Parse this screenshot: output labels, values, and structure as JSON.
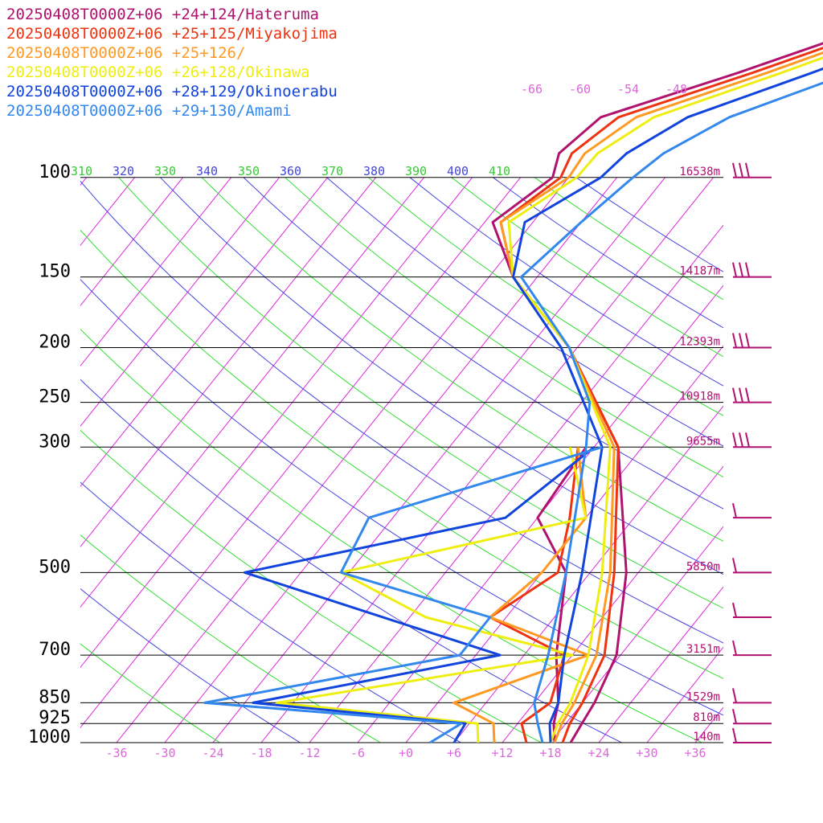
{
  "chart_data": {
    "type": "line",
    "title": "",
    "xlabel": "",
    "ylabel": "",
    "x_ticks": [
      "-36",
      "-30",
      "-24",
      "-18",
      "-12",
      "-6",
      "+0",
      "+6",
      "+12",
      "+18",
      "+24",
      "+30",
      "+36"
    ],
    "x_tick_values": [
      -36,
      -30,
      -24,
      -18,
      -12,
      -6,
      0,
      6,
      12,
      18,
      24,
      30,
      36
    ],
    "pressure_levels": [
      "100",
      "150",
      "200",
      "250",
      "300",
      "500",
      "700",
      "850",
      "925",
      "1000"
    ],
    "pressure_values": [
      100,
      150,
      200,
      250,
      300,
      500,
      700,
      850,
      925,
      1000
    ],
    "height_labels": [
      {
        "p": 100,
        "text": "16538m"
      },
      {
        "p": 150,
        "text": "14187m"
      },
      {
        "p": 200,
        "text": "12393m"
      },
      {
        "p": 250,
        "text": "10918m"
      },
      {
        "p": 300,
        "text": "9655m"
      },
      {
        "p": 500,
        "text": "5850m"
      },
      {
        "p": 700,
        "text": "3151m"
      },
      {
        "p": 850,
        "text": "1529m"
      },
      {
        "p": 925,
        "text": "810m"
      },
      {
        "p": 1000,
        "text": "140m"
      }
    ],
    "theta_labels": [
      "310",
      "320",
      "330",
      "340",
      "350",
      "360",
      "370",
      "380",
      "390",
      "400",
      "410"
    ],
    "mixing_ratio_labels": [
      "-66",
      "-60",
      "-54",
      "-48"
    ],
    "colors": {
      "isobar": "#000000",
      "isotherm": "#dd22dd",
      "dry_adiabat": "#4444dd",
      "moist_adiabat": "#33dd33",
      "theta_green": "#33cc33",
      "theta_blue": "#4444dd",
      "axis_label": "#dd66dd",
      "height_label": "#b01070",
      "barb": "#b01070"
    },
    "series": [
      {
        "name": "20250408T0000Z+06 +24+124/Hateruma",
        "color": "#b0126e",
        "temp": [
          [
            1000,
            20.5
          ],
          [
            925,
            20.0
          ],
          [
            850,
            19.5
          ],
          [
            700,
            17.5
          ],
          [
            500,
            10.5
          ],
          [
            300,
            -3
          ],
          [
            200,
            -19
          ],
          [
            150,
            -33
          ],
          [
            120,
            -41
          ],
          [
            100,
            -38
          ]
        ],
        "dew": [
          [
            1000,
            18.5
          ],
          [
            925,
            16.5
          ],
          [
            850,
            15
          ],
          [
            700,
            10
          ],
          [
            500,
            3
          ],
          [
            400,
            -6
          ],
          [
            300,
            -7
          ]
        ]
      },
      {
        "name": "20250408T0000Z+06 +25+125/Miyakojima",
        "color": "#ee3311",
        "temp": [
          [
            1000,
            19.5
          ],
          [
            925,
            18.5
          ],
          [
            850,
            18
          ],
          [
            700,
            16
          ],
          [
            500,
            9
          ],
          [
            300,
            -3
          ],
          [
            200,
            -19
          ],
          [
            150,
            -33
          ],
          [
            120,
            -40
          ],
          [
            100,
            -37
          ]
        ],
        "dew": [
          [
            1000,
            15
          ],
          [
            925,
            12.5
          ],
          [
            850,
            14
          ],
          [
            700,
            11
          ],
          [
            600,
            -2
          ],
          [
            500,
            2
          ],
          [
            400,
            -2
          ],
          [
            300,
            -8
          ]
        ]
      },
      {
        "name": "20250408T0000Z+06 +25+126/",
        "color": "#ff9922",
        "temp": [
          [
            1000,
            18.5
          ],
          [
            925,
            17.5
          ],
          [
            850,
            17
          ],
          [
            700,
            15
          ],
          [
            500,
            8.5
          ],
          [
            300,
            -3.5
          ],
          [
            200,
            -19
          ],
          [
            150,
            -33
          ],
          [
            120,
            -40
          ],
          [
            100,
            -36
          ]
        ],
        "dew": [
          [
            1000,
            11
          ],
          [
            925,
            9
          ],
          [
            850,
            2
          ],
          [
            700,
            14
          ],
          [
            600,
            -2
          ],
          [
            500,
            0
          ],
          [
            400,
            0
          ],
          [
            300,
            -8
          ]
        ]
      },
      {
        "name": "20250408T0000Z+06 +26+128/Okinawa",
        "color": "#eeee11",
        "temp": [
          [
            1000,
            18
          ],
          [
            925,
            17
          ],
          [
            850,
            16.5
          ],
          [
            700,
            14
          ],
          [
            500,
            7.5
          ],
          [
            300,
            -4
          ],
          [
            200,
            -19
          ],
          [
            150,
            -33
          ],
          [
            120,
            -39
          ],
          [
            100,
            -35
          ]
        ],
        "dew": [
          [
            1000,
            9
          ],
          [
            925,
            7
          ],
          [
            850,
            -20
          ],
          [
            700,
            12
          ],
          [
            600,
            -10
          ],
          [
            500,
            -25
          ],
          [
            400,
            0
          ],
          [
            300,
            -9
          ]
        ]
      },
      {
        "name": "20250408T0000Z+06 +28+129/Okinoerabu",
        "color": "#1144dd",
        "temp": [
          [
            1000,
            18
          ],
          [
            925,
            16
          ],
          [
            850,
            15
          ],
          [
            700,
            11
          ],
          [
            500,
            5
          ],
          [
            300,
            -5
          ],
          [
            200,
            -20
          ],
          [
            150,
            -33
          ],
          [
            120,
            -37
          ],
          [
            100,
            -32
          ]
        ],
        "dew": [
          [
            1000,
            6
          ],
          [
            925,
            5.5
          ],
          [
            850,
            -23
          ],
          [
            700,
            3
          ],
          [
            500,
            -37
          ],
          [
            400,
            -10
          ],
          [
            300,
            -6
          ]
        ]
      },
      {
        "name": "20250408T0000Z+06 +29+130/Amami",
        "color": "#3388ee",
        "temp": [
          [
            1000,
            17
          ],
          [
            925,
            14.5
          ],
          [
            850,
            12
          ],
          [
            700,
            9
          ],
          [
            500,
            3
          ],
          [
            300,
            -7
          ],
          [
            250,
            -11
          ],
          [
            200,
            -19
          ],
          [
            150,
            -32
          ],
          [
            120,
            -30
          ],
          [
            100,
            -28
          ]
        ],
        "dew": [
          [
            1000,
            3
          ],
          [
            925,
            5
          ],
          [
            850,
            -29
          ],
          [
            700,
            -2
          ],
          [
            600,
            -2
          ],
          [
            500,
            -25
          ],
          [
            400,
            -27
          ],
          [
            300,
            -5
          ]
        ]
      }
    ],
    "top_curves": {
      "source": "continuation above 100 hPa",
      "note": ""
    },
    "wind_barbs": [
      {
        "p": 100
      },
      {
        "p": 150
      },
      {
        "p": 200
      },
      {
        "p": 250
      },
      {
        "p": 300
      },
      {
        "p": 400
      },
      {
        "p": 500
      },
      {
        "p": 600
      },
      {
        "p": 700
      },
      {
        "p": 850
      },
      {
        "p": 925
      },
      {
        "p": 1000
      }
    ]
  }
}
